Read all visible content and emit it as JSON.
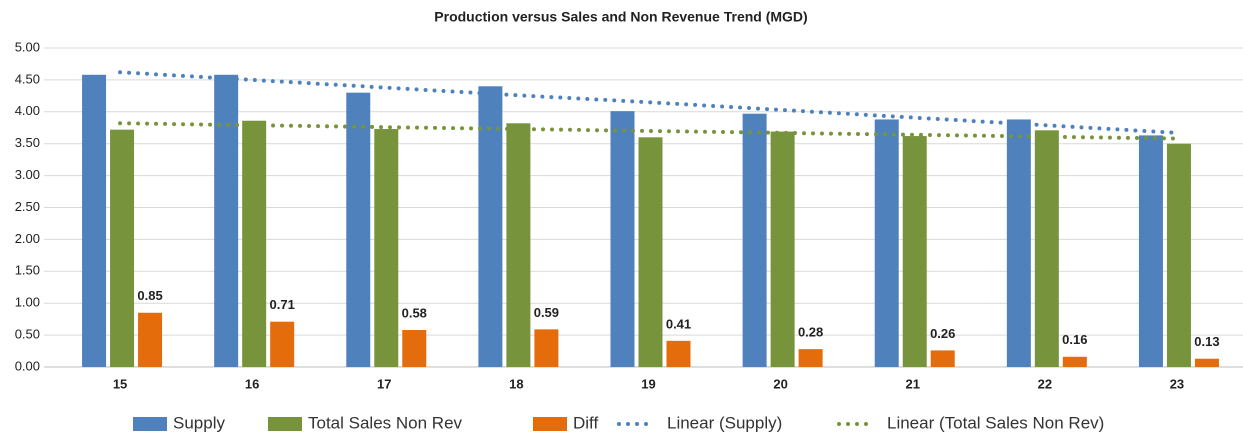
{
  "chart_data": {
    "type": "bar",
    "title": "Production versus Sales and Non Revenue Trend (MGD)",
    "categories": [
      "15",
      "16",
      "17",
      "18",
      "19",
      "20",
      "21",
      "22",
      "23"
    ],
    "series": [
      {
        "name": "Supply",
        "type": "bar",
        "color": "#4f81bd",
        "values": [
          4.58,
          4.58,
          4.3,
          4.4,
          4.01,
          3.97,
          3.88,
          3.88,
          3.63
        ]
      },
      {
        "name": "Total Sales Non Rev",
        "type": "bar",
        "color": "#77933c",
        "values": [
          3.72,
          3.86,
          3.73,
          3.82,
          3.6,
          3.69,
          3.62,
          3.71,
          3.5
        ]
      },
      {
        "name": "Diff",
        "type": "bar",
        "color": "#e46c0a",
        "labels": true,
        "values": [
          0.85,
          0.71,
          0.58,
          0.59,
          0.41,
          0.28,
          0.26,
          0.16,
          0.13
        ]
      },
      {
        "name": "Linear (Supply)",
        "type": "line",
        "color": "#4f81bd",
        "values": [
          4.62,
          4.5,
          4.38,
          4.26,
          4.15,
          4.03,
          3.91,
          3.79,
          3.67
        ]
      },
      {
        "name": "Linear (Total Sales Non Rev)",
        "type": "line",
        "color": "#77933c",
        "values": [
          3.82,
          3.79,
          3.76,
          3.73,
          3.7,
          3.67,
          3.64,
          3.61,
          3.58
        ]
      }
    ],
    "ylim": [
      0,
      5
    ],
    "yticks": [
      {
        "value": 0,
        "label": "0.00"
      },
      {
        "value": 0.5,
        "label": "0.50"
      },
      {
        "value": 1,
        "label": "1.00"
      },
      {
        "value": 1.5,
        "label": "1.50"
      },
      {
        "value": 2,
        "label": "2.00"
      },
      {
        "value": 2.5,
        "label": "2.50"
      },
      {
        "value": 3,
        "label": "3.00"
      },
      {
        "value": 3.5,
        "label": "3.50"
      },
      {
        "value": 4,
        "label": "4.00"
      },
      {
        "value": 4.5,
        "label": "4.50"
      },
      {
        "value": 5,
        "label": "5.00"
      }
    ],
    "grid": true,
    "legend": "bottom"
  }
}
